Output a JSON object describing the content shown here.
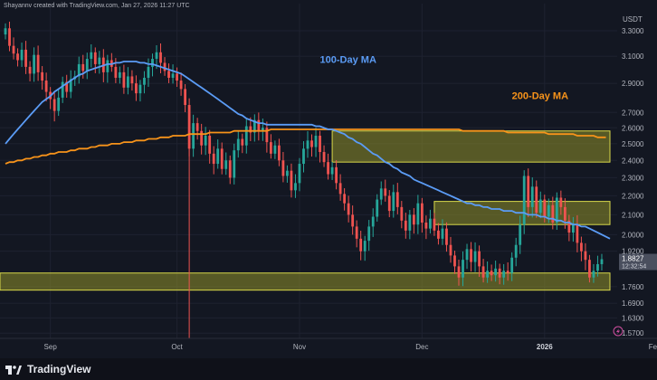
{
  "watermark": "Shayannv created with TradingView.com, Jan 27, 2026 11:27 UTC",
  "brand": "TradingView",
  "chart_data": {
    "type": "candlestick",
    "currency": "USDT",
    "yscale": "log",
    "ylim": [
      1.55,
      3.45
    ],
    "y_ticks": [
      "3.3000",
      "3.1000",
      "2.9000",
      "2.7000",
      "2.6000",
      "2.5000",
      "2.4000",
      "2.3000",
      "2.2000",
      "2.1000",
      "2.0000",
      "1.9200",
      "1.7600",
      "1.6900",
      "1.6300",
      "1.5700"
    ],
    "x_ticks": [
      "Sep",
      "Oct",
      "Nov",
      "Dec",
      "2026",
      "Feb"
    ],
    "x_tick_index": [
      11,
      42,
      72,
      102,
      132,
      159
    ],
    "price_label": "1.8827",
    "countdown_label": "12:32:54",
    "colors": {
      "up": "#26a69a",
      "down": "#ef5350",
      "ma100": "#5b9cf6",
      "ma200": "#f7931a",
      "zone": "#8f8f2a",
      "zone_border": "#d9d94a"
    },
    "annotations": [
      {
        "text": "100-Day MA",
        "color": "#5b9cf6",
        "at_index": 77,
        "at_price": 3.05
      },
      {
        "text": "200-Day MA",
        "color": "#f7931a",
        "at_index": 124,
        "at_price": 2.79
      }
    ],
    "zones": [
      {
        "from_index": 80,
        "to_index": 148,
        "low": 2.39,
        "high": 2.58
      },
      {
        "from_index": 105,
        "to_index": 148,
        "low": 2.05,
        "high": 2.17
      },
      {
        "from_index": 0,
        "to_index": 148,
        "low": 1.745,
        "high": 1.82
      }
    ],
    "series": {
      "close": [
        3.32,
        3.18,
        3.12,
        3.07,
        3.15,
        3.02,
        2.97,
        3.11,
        2.98,
        2.92,
        2.84,
        2.79,
        2.71,
        2.8,
        2.91,
        2.84,
        2.93,
        2.95,
        3.04,
        2.99,
        3.08,
        3.13,
        3.04,
        3.09,
        2.98,
        3.07,
        3.02,
        2.94,
        2.98,
        2.87,
        2.95,
        2.9,
        2.83,
        2.89,
        2.94,
        3.02,
        3.08,
        3.13,
        3.05,
        2.99,
        2.94,
        2.97,
        2.92,
        2.86,
        2.75,
        2.47,
        2.63,
        2.58,
        2.49,
        2.55,
        2.44,
        2.38,
        2.47,
        2.35,
        2.4,
        2.3,
        2.46,
        2.53,
        2.49,
        2.61,
        2.57,
        2.65,
        2.58,
        2.6,
        2.51,
        2.44,
        2.49,
        2.4,
        2.31,
        2.34,
        2.23,
        2.27,
        2.38,
        2.47,
        2.52,
        2.48,
        2.55,
        2.45,
        2.39,
        2.32,
        2.36,
        2.27,
        2.21,
        2.16,
        2.1,
        2.04,
        1.98,
        1.92,
        1.97,
        2.04,
        2.09,
        2.18,
        2.24,
        2.2,
        2.12,
        2.22,
        2.14,
        2.07,
        2.02,
        2.1,
        2.05,
        2.16,
        2.06,
        2.03,
        2.08,
        2.02,
        1.98,
        2.03,
        1.95,
        1.9,
        1.85,
        1.8,
        1.88,
        1.93,
        1.87,
        1.92,
        1.85,
        1.8,
        1.83,
        1.81,
        1.84,
        1.8,
        1.83,
        1.82,
        1.89,
        1.95,
        2.05,
        2.31,
        2.14,
        2.25,
        2.11,
        2.18,
        2.09,
        2.15,
        2.06,
        2.19,
        2.14,
        2.07,
        2.01,
        2.05,
        1.96,
        1.92,
        1.88,
        1.8,
        1.83,
        1.86,
        1.8827
      ],
      "ma100": [
        2.5,
        2.53,
        2.56,
        2.59,
        2.62,
        2.65,
        2.68,
        2.71,
        2.74,
        2.77,
        2.79,
        2.81,
        2.84,
        2.86,
        2.88,
        2.9,
        2.92,
        2.94,
        2.96,
        2.97,
        2.99,
        3.0,
        3.01,
        3.02,
        3.03,
        3.04,
        3.04,
        3.05,
        3.05,
        3.06,
        3.06,
        3.06,
        3.06,
        3.05,
        3.05,
        3.04,
        3.04,
        3.03,
        3.02,
        3.01,
        3.0,
        2.99,
        2.98,
        2.97,
        2.95,
        2.93,
        2.91,
        2.89,
        2.87,
        2.85,
        2.83,
        2.81,
        2.79,
        2.77,
        2.75,
        2.73,
        2.71,
        2.69,
        2.68,
        2.66,
        2.65,
        2.64,
        2.63,
        2.63,
        2.62,
        2.62,
        2.62,
        2.62,
        2.62,
        2.62,
        2.62,
        2.62,
        2.62,
        2.62,
        2.62,
        2.62,
        2.61,
        2.61,
        2.6,
        2.59,
        2.59,
        2.58,
        2.57,
        2.56,
        2.54,
        2.53,
        2.51,
        2.5,
        2.48,
        2.46,
        2.44,
        2.43,
        2.41,
        2.39,
        2.38,
        2.36,
        2.35,
        2.33,
        2.32,
        2.31,
        2.29,
        2.28,
        2.27,
        2.26,
        2.25,
        2.24,
        2.23,
        2.22,
        2.21,
        2.2,
        2.19,
        2.18,
        2.17,
        2.16,
        2.16,
        2.15,
        2.15,
        2.14,
        2.14,
        2.13,
        2.13,
        2.13,
        2.12,
        2.12,
        2.12,
        2.11,
        2.11,
        2.11,
        2.1,
        2.1,
        2.1,
        2.09,
        2.09,
        2.08,
        2.08,
        2.07,
        2.07,
        2.06,
        2.06,
        2.05,
        2.05,
        2.04,
        2.04,
        2.03,
        2.02,
        2.01,
        2.0,
        1.99,
        1.98
      ],
      "ma200": [
        2.38,
        2.39,
        2.39,
        2.4,
        2.4,
        2.41,
        2.41,
        2.42,
        2.42,
        2.43,
        2.43,
        2.44,
        2.44,
        2.45,
        2.45,
        2.45,
        2.46,
        2.46,
        2.47,
        2.47,
        2.47,
        2.48,
        2.48,
        2.49,
        2.49,
        2.49,
        2.5,
        2.5,
        2.5,
        2.51,
        2.51,
        2.51,
        2.52,
        2.52,
        2.52,
        2.53,
        2.53,
        2.53,
        2.54,
        2.54,
        2.54,
        2.55,
        2.55,
        2.55,
        2.55,
        2.56,
        2.56,
        2.56,
        2.56,
        2.56,
        2.57,
        2.57,
        2.57,
        2.57,
        2.57,
        2.57,
        2.58,
        2.58,
        2.58,
        2.58,
        2.58,
        2.58,
        2.58,
        2.58,
        2.58,
        2.59,
        2.59,
        2.59,
        2.59,
        2.59,
        2.59,
        2.59,
        2.59,
        2.59,
        2.59,
        2.59,
        2.59,
        2.59,
        2.59,
        2.59,
        2.59,
        2.59,
        2.59,
        2.59,
        2.59,
        2.59,
        2.59,
        2.59,
        2.59,
        2.59,
        2.59,
        2.59,
        2.59,
        2.59,
        2.59,
        2.59,
        2.59,
        2.59,
        2.59,
        2.59,
        2.59,
        2.59,
        2.59,
        2.59,
        2.59,
        2.59,
        2.59,
        2.59,
        2.59,
        2.59,
        2.59,
        2.59,
        2.58,
        2.58,
        2.58,
        2.58,
        2.58,
        2.58,
        2.58,
        2.58,
        2.58,
        2.58,
        2.58,
        2.57,
        2.57,
        2.57,
        2.57,
        2.57,
        2.57,
        2.57,
        2.57,
        2.57,
        2.57,
        2.56,
        2.56,
        2.56,
        2.56,
        2.56,
        2.56,
        2.56,
        2.55,
        2.55,
        2.55,
        2.55,
        2.55,
        2.54,
        2.54,
        2.54
      ]
    }
  }
}
